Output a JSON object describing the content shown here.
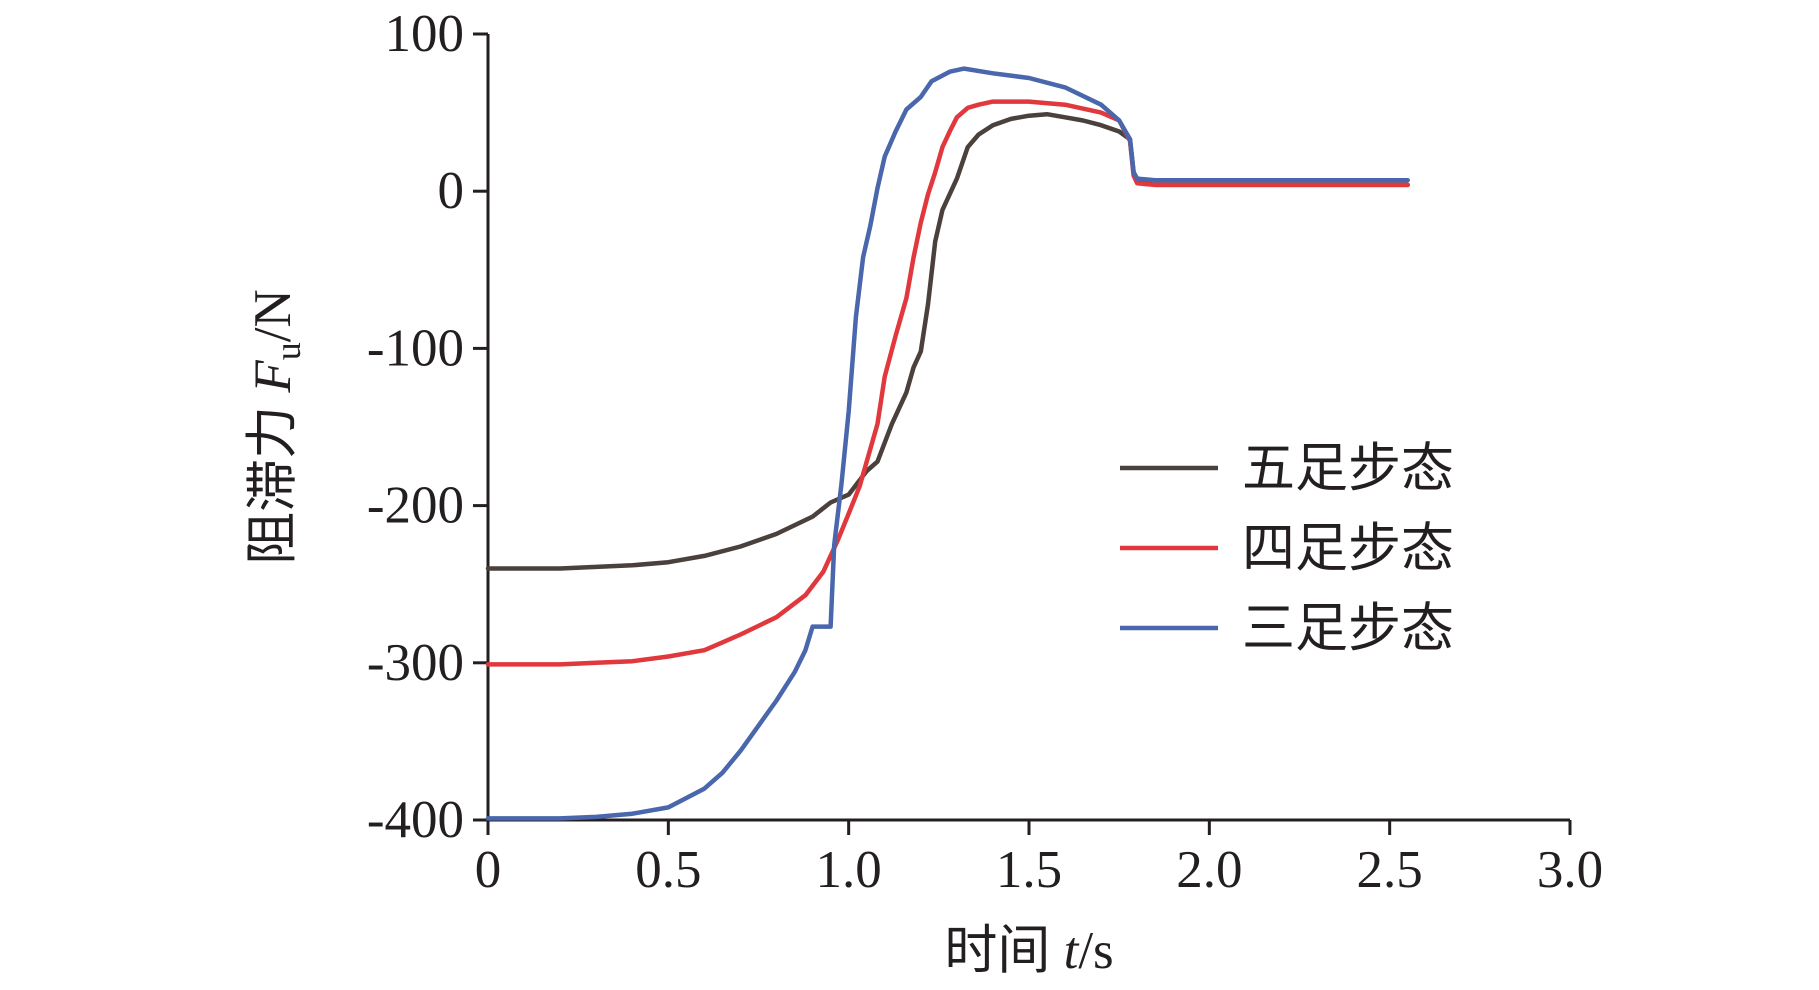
{
  "chart_data": {
    "type": "line",
    "title": "",
    "xlabel": {
      "prefix": "时间 ",
      "variable": "t",
      "suffix": "/s"
    },
    "ylabel": {
      "prefix": "阻滞力 ",
      "variable": "F",
      "subscript": "u",
      "suffix": "/N"
    },
    "xlim": [
      0,
      3.0
    ],
    "ylim": [
      -400,
      100
    ],
    "x_ticks": [
      "0",
      "0.5",
      "1.0",
      "1.5",
      "2.0",
      "2.5",
      "3.0"
    ],
    "y_ticks": [
      "100",
      "0",
      "-100",
      "-200",
      "-300",
      "-400"
    ],
    "grid": false,
    "legend_position": "right",
    "series": [
      {
        "name": "五足步态",
        "color": "#4a403c",
        "points": [
          [
            0.0,
            -240
          ],
          [
            0.1,
            -240
          ],
          [
            0.2,
            -240
          ],
          [
            0.3,
            -239
          ],
          [
            0.4,
            -238
          ],
          [
            0.5,
            -236
          ],
          [
            0.6,
            -232
          ],
          [
            0.7,
            -226
          ],
          [
            0.8,
            -218
          ],
          [
            0.9,
            -207
          ],
          [
            0.95,
            -198
          ],
          [
            1.0,
            -193
          ],
          [
            1.05,
            -178
          ],
          [
            1.08,
            -172
          ],
          [
            1.12,
            -148
          ],
          [
            1.16,
            -128
          ],
          [
            1.18,
            -112
          ],
          [
            1.2,
            -102
          ],
          [
            1.22,
            -72
          ],
          [
            1.24,
            -32
          ],
          [
            1.26,
            -12
          ],
          [
            1.3,
            8
          ],
          [
            1.33,
            28
          ],
          [
            1.36,
            36
          ],
          [
            1.4,
            42
          ],
          [
            1.45,
            46
          ],
          [
            1.5,
            48
          ],
          [
            1.55,
            49
          ],
          [
            1.6,
            47
          ],
          [
            1.65,
            45
          ],
          [
            1.7,
            42
          ],
          [
            1.75,
            38
          ],
          [
            1.78,
            33
          ],
          [
            1.79,
            12
          ],
          [
            1.8,
            6
          ],
          [
            1.85,
            4
          ],
          [
            1.9,
            4
          ],
          [
            2.0,
            4
          ],
          [
            2.2,
            4
          ],
          [
            2.4,
            4
          ],
          [
            2.55,
            4
          ]
        ]
      },
      {
        "name": "四足步态",
        "color": "#e0383c",
        "points": [
          [
            0.0,
            -301
          ],
          [
            0.1,
            -301
          ],
          [
            0.2,
            -301
          ],
          [
            0.3,
            -300
          ],
          [
            0.4,
            -299
          ],
          [
            0.5,
            -296
          ],
          [
            0.6,
            -292
          ],
          [
            0.65,
            -287
          ],
          [
            0.7,
            -282
          ],
          [
            0.8,
            -271
          ],
          [
            0.88,
            -257
          ],
          [
            0.93,
            -242
          ],
          [
            0.97,
            -222
          ],
          [
            1.0,
            -205
          ],
          [
            1.03,
            -188
          ],
          [
            1.05,
            -172
          ],
          [
            1.08,
            -148
          ],
          [
            1.1,
            -118
          ],
          [
            1.13,
            -92
          ],
          [
            1.16,
            -68
          ],
          [
            1.18,
            -42
          ],
          [
            1.2,
            -20
          ],
          [
            1.22,
            -2
          ],
          [
            1.24,
            12
          ],
          [
            1.26,
            28
          ],
          [
            1.28,
            38
          ],
          [
            1.3,
            47
          ],
          [
            1.33,
            53
          ],
          [
            1.36,
            55
          ],
          [
            1.4,
            57
          ],
          [
            1.5,
            57
          ],
          [
            1.6,
            55
          ],
          [
            1.7,
            50
          ],
          [
            1.75,
            45
          ],
          [
            1.78,
            32
          ],
          [
            1.79,
            10
          ],
          [
            1.8,
            5
          ],
          [
            1.85,
            4
          ],
          [
            2.0,
            4
          ],
          [
            2.2,
            4
          ],
          [
            2.4,
            4
          ],
          [
            2.55,
            4
          ]
        ]
      },
      {
        "name": "三足步态",
        "color": "#4a66ac",
        "points": [
          [
            0.0,
            -399
          ],
          [
            0.1,
            -399
          ],
          [
            0.2,
            -399
          ],
          [
            0.3,
            -398
          ],
          [
            0.4,
            -396
          ],
          [
            0.5,
            -392
          ],
          [
            0.55,
            -386
          ],
          [
            0.6,
            -380
          ],
          [
            0.65,
            -370
          ],
          [
            0.7,
            -356
          ],
          [
            0.75,
            -340
          ],
          [
            0.8,
            -324
          ],
          [
            0.85,
            -306
          ],
          [
            0.88,
            -292
          ],
          [
            0.9,
            -277
          ],
          [
            0.95,
            -277
          ],
          [
            0.96,
            -225
          ],
          [
            0.98,
            -186
          ],
          [
            1.0,
            -140
          ],
          [
            1.02,
            -80
          ],
          [
            1.04,
            -42
          ],
          [
            1.06,
            -22
          ],
          [
            1.08,
            2
          ],
          [
            1.1,
            22
          ],
          [
            1.13,
            38
          ],
          [
            1.16,
            52
          ],
          [
            1.2,
            60
          ],
          [
            1.23,
            70
          ],
          [
            1.28,
            76
          ],
          [
            1.32,
            78
          ],
          [
            1.4,
            75
          ],
          [
            1.5,
            72
          ],
          [
            1.6,
            66
          ],
          [
            1.7,
            55
          ],
          [
            1.75,
            45
          ],
          [
            1.78,
            33
          ],
          [
            1.79,
            12
          ],
          [
            1.8,
            8
          ],
          [
            1.85,
            7
          ],
          [
            2.0,
            7
          ],
          [
            2.2,
            7
          ],
          [
            2.4,
            7
          ],
          [
            2.55,
            7
          ]
        ]
      }
    ]
  }
}
